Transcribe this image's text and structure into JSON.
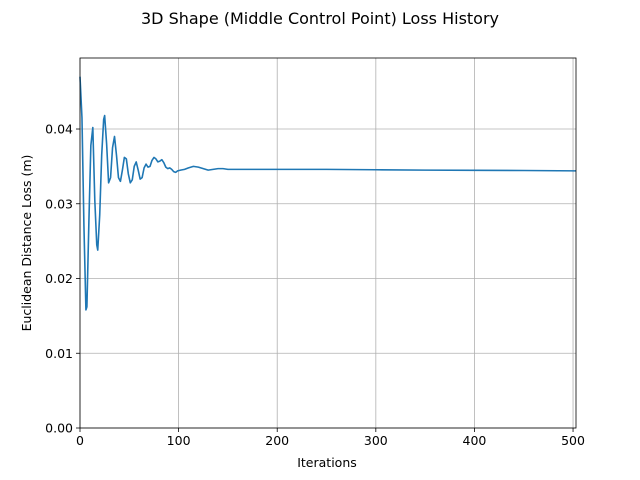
{
  "chart_data": {
    "type": "line",
    "title": "3D Shape (Middle Control Point) Loss History",
    "xlabel": "Iterations",
    "ylabel": "Euclidean Distance Loss (m)",
    "xlim": [
      0,
      503
    ],
    "ylim": [
      0,
      0.0495
    ],
    "xticks": [
      0,
      100,
      200,
      300,
      400,
      500
    ],
    "xtick_labels": [
      "0",
      "100",
      "200",
      "300",
      "400",
      "500"
    ],
    "yticks": [
      0,
      0.01,
      0.02,
      0.03,
      0.04
    ],
    "ytick_labels": [
      "0.00",
      "0.01",
      "0.02",
      "0.03",
      "0.04"
    ],
    "grid": true,
    "line_color": "#1f77b4",
    "series": [
      {
        "x": [
          0,
          2,
          4,
          6,
          7,
          9,
          11,
          13,
          15,
          17,
          18,
          20,
          22,
          24,
          25,
          27,
          29,
          31,
          33,
          35,
          37,
          39,
          41,
          43,
          45,
          47,
          49,
          51,
          53,
          55,
          57,
          59,
          61,
          63,
          65,
          67,
          69,
          71,
          73,
          75,
          77,
          79,
          81,
          83,
          85,
          87,
          89,
          91,
          93,
          95,
          97,
          99,
          102,
          106,
          110,
          115,
          120,
          125,
          130,
          135,
          140,
          145,
          150,
          160,
          200,
          250,
          300,
          350,
          400,
          450,
          503
        ],
        "y": [
          0.047,
          0.0415,
          0.027,
          0.0158,
          0.0162,
          0.0275,
          0.0378,
          0.0402,
          0.0305,
          0.0245,
          0.0238,
          0.0285,
          0.0365,
          0.0413,
          0.0418,
          0.038,
          0.0328,
          0.0335,
          0.0375,
          0.039,
          0.0365,
          0.0335,
          0.033,
          0.0345,
          0.0362,
          0.036,
          0.034,
          0.0328,
          0.0332,
          0.035,
          0.0356,
          0.0345,
          0.0333,
          0.0335,
          0.0348,
          0.0353,
          0.0349,
          0.035,
          0.0358,
          0.0362,
          0.036,
          0.0356,
          0.0357,
          0.0359,
          0.0355,
          0.0349,
          0.0347,
          0.0348,
          0.0346,
          0.0343,
          0.0342,
          0.0344,
          0.0345,
          0.0346,
          0.0348,
          0.035,
          0.0349,
          0.0347,
          0.0345,
          0.0346,
          0.0347,
          0.0347,
          0.0346,
          0.0346,
          0.0346,
          0.0346,
          0.03455,
          0.0345,
          0.03448,
          0.03445,
          0.0344
        ]
      }
    ]
  }
}
